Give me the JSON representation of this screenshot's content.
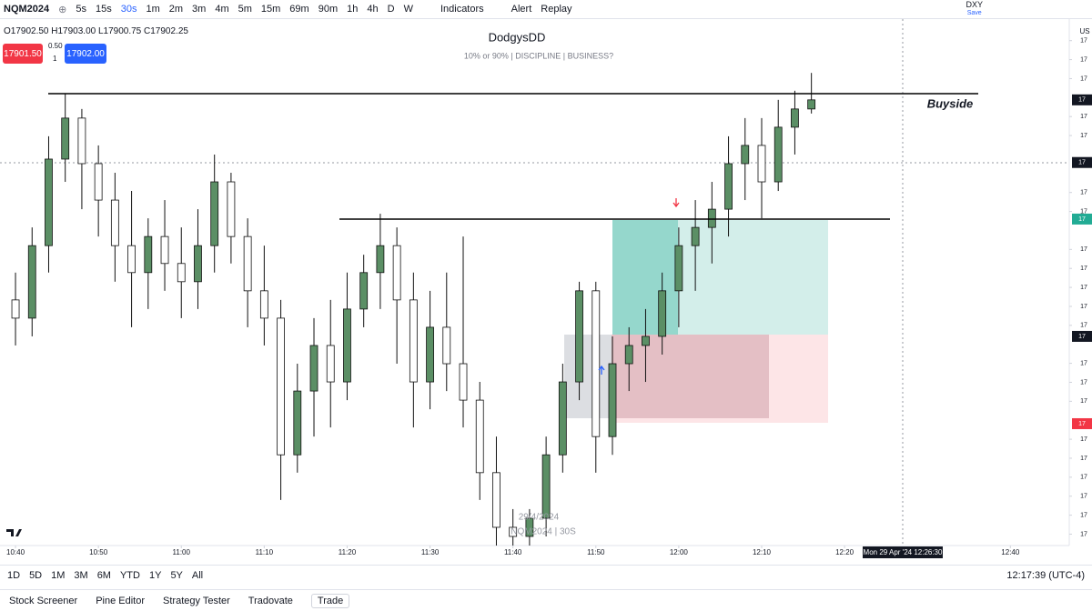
{
  "toolbar": {
    "symbol": "NQM2024",
    "intervals": [
      "5s",
      "15s",
      "30s",
      "1m",
      "2m",
      "3m",
      "4m",
      "5m",
      "15m",
      "69m",
      "90m",
      "1h",
      "4h",
      "D",
      "W"
    ],
    "indicators": "Indicators",
    "alert": "Alert",
    "replay": "Replay",
    "compare_symbol": "DXY",
    "save": "Save"
  },
  "legend": {
    "ohlc": "O17902.50 H17903.00 L17900.75 C17902.25",
    "sell": "17901.50",
    "spread": "0.50",
    "quantity": "1",
    "buy": "17902.00"
  },
  "chart_data": {
    "type": "candlestick",
    "title": "DodgysDD",
    "subtitle": "10% or 90%  |  DISCIPLINE  |  BUSINESS?",
    "annotation": "Buyside",
    "watermark": [
      "29/4/2024",
      "NQM2024 | 30S"
    ],
    "currency": "US",
    "crosshair_label": "Mon 29 Apr '24   12:26:30",
    "up_color": "#5b8f65",
    "down_color": "#ffffff",
    "wick_color": "#111111",
    "x": [
      0,
      2,
      4,
      6,
      8,
      10,
      12,
      14,
      16,
      18,
      20,
      22,
      24,
      26,
      28,
      30,
      32,
      34,
      36,
      38,
      40,
      42,
      44,
      46,
      48,
      50,
      52,
      54,
      56,
      58,
      60,
      62,
      64,
      66,
      68,
      70,
      72,
      74,
      76,
      78,
      80,
      82,
      84,
      86,
      88,
      90,
      92,
      94,
      96
    ],
    "open": [
      17846.7,
      17841.9,
      17861.0,
      17883.8,
      17894.6,
      17882.6,
      17873.0,
      17861.0,
      17853.9,
      17863.4,
      17856.3,
      17851.5,
      17861.0,
      17877.8,
      17863.4,
      17849.1,
      17841.9,
      17805.9,
      17822.7,
      17834.7,
      17825.1,
      17844.3,
      17853.9,
      17861.0,
      17846.7,
      17825.1,
      17839.5,
      17829.9,
      17820.3,
      17801.2,
      17786.8,
      17784.4,
      17789.2,
      17805.9,
      17825.1,
      17849.1,
      17810.7,
      17829.9,
      17834.7,
      17837.1,
      17849.1,
      17861.0,
      17865.8,
      17870.6,
      17882.6,
      17887.4,
      17877.8,
      17892.2,
      17897.0
    ],
    "high": [
      17853.9,
      17865.8,
      17889.8,
      17901.0,
      17897.0,
      17887.4,
      17880.2,
      17875.4,
      17868.2,
      17873.0,
      17865.8,
      17870.6,
      17885.0,
      17880.2,
      17868.2,
      17861.0,
      17846.7,
      17829.9,
      17841.9,
      17846.7,
      17853.9,
      17858.6,
      17869.4,
      17865.8,
      17853.9,
      17849.1,
      17853.9,
      17863.4,
      17825.1,
      17810.7,
      17791.6,
      17791.6,
      17810.7,
      17829.9,
      17851.5,
      17851.5,
      17837.1,
      17839.5,
      17844.3,
      17853.9,
      17865.8,
      17873.0,
      17877.8,
      17889.8,
      17894.6,
      17894.6,
      17899.4,
      17901.8,
      17906.5
    ],
    "low": [
      17834.7,
      17837.1,
      17853.9,
      17877.8,
      17870.6,
      17863.4,
      17851.5,
      17839.5,
      17844.3,
      17849.1,
      17841.9,
      17844.3,
      17853.9,
      17856.3,
      17839.5,
      17834.7,
      17794.0,
      17801.2,
      17810.7,
      17813.1,
      17820.3,
      17839.5,
      17844.3,
      17829.9,
      17813.1,
      17817.9,
      17822.7,
      17813.1,
      17794.0,
      17782.0,
      17782.0,
      17782.0,
      17784.4,
      17801.2,
      17820.3,
      17801.2,
      17805.9,
      17822.7,
      17825.1,
      17832.3,
      17839.5,
      17849.1,
      17856.3,
      17863.4,
      17873.0,
      17868.2,
      17875.4,
      17885.0,
      17895.8
    ],
    "close": [
      17841.9,
      17861.0,
      17883.8,
      17894.6,
      17882.6,
      17873.0,
      17861.0,
      17853.9,
      17863.4,
      17856.3,
      17851.5,
      17861.0,
      17877.8,
      17863.4,
      17849.1,
      17841.9,
      17805.9,
      17822.7,
      17834.7,
      17825.1,
      17844.3,
      17853.9,
      17861.0,
      17846.7,
      17825.1,
      17839.5,
      17829.9,
      17820.3,
      17801.2,
      17786.8,
      17784.4,
      17789.2,
      17805.9,
      17825.1,
      17849.1,
      17810.7,
      17829.9,
      17834.7,
      17837.1,
      17849.1,
      17861.0,
      17865.8,
      17870.6,
      17882.6,
      17887.4,
      17877.8,
      17892.2,
      17897.0,
      17899.4
    ],
    "xlim": [
      -1.87,
      127.1
    ],
    "xticks": [
      {
        "value": 0,
        "label": "10:40"
      },
      {
        "value": 10,
        "label": "10:50"
      },
      {
        "value": 20,
        "label": "11:00"
      },
      {
        "value": 30,
        "label": "11:10"
      },
      {
        "value": 40,
        "label": "11:20"
      },
      {
        "value": 50,
        "label": "11:30"
      },
      {
        "value": 60,
        "label": "11:40"
      },
      {
        "value": 70,
        "label": "11:50"
      },
      {
        "value": 80,
        "label": "12:00"
      },
      {
        "value": 90,
        "label": "12:10"
      },
      {
        "value": 100,
        "label": "12:20"
      },
      {
        "value": 120,
        "label": "12:40"
      }
    ],
    "ylim": [
      17782,
      17919
    ],
    "yticks": [
      {
        "value": 17915,
        "label": "17"
      },
      {
        "value": 17910,
        "label": "17"
      },
      {
        "value": 17905,
        "label": "17"
      },
      {
        "value": 17895,
        "label": "17"
      },
      {
        "value": 17890,
        "label": "17"
      },
      {
        "value": 17875,
        "label": "17"
      },
      {
        "value": 17870,
        "label": "17"
      },
      {
        "value": 17860,
        "label": "17"
      },
      {
        "value": 17855,
        "label": "17"
      },
      {
        "value": 17850,
        "label": "17"
      },
      {
        "value": 17845,
        "label": "17"
      },
      {
        "value": 17840,
        "label": "17"
      },
      {
        "value": 17830,
        "label": "17"
      },
      {
        "value": 17825,
        "label": "17"
      },
      {
        "value": 17820,
        "label": "17"
      },
      {
        "value": 17810,
        "label": "17"
      },
      {
        "value": 17805,
        "label": "17"
      },
      {
        "value": 17800,
        "label": "17"
      },
      {
        "value": 17795,
        "label": "17"
      },
      {
        "value": 17790,
        "label": "17"
      },
      {
        "value": 17785,
        "label": "17"
      }
    ],
    "price_tags": [
      {
        "value": 17899.4,
        "label": "17",
        "color": "#131722"
      },
      {
        "value": 17882.9,
        "label": "17",
        "color": "#131722"
      },
      {
        "value": 17868.0,
        "label": "17",
        "color": "#22ab94"
      },
      {
        "value": 17837.1,
        "label": "17",
        "color": "#131722"
      },
      {
        "value": 17814.1,
        "label": "17",
        "color": "#f23645"
      }
    ]
  },
  "bottom_bar": {
    "ranges": [
      "1D",
      "5D",
      "1M",
      "3M",
      "6M",
      "YTD",
      "1Y",
      "5Y",
      "All"
    ],
    "clock": "12:17:39 (UTC-4)"
  },
  "tabs": [
    "Stock Screener",
    "Pine Editor",
    "Strategy Tester",
    "Tradovate",
    "Trade"
  ]
}
